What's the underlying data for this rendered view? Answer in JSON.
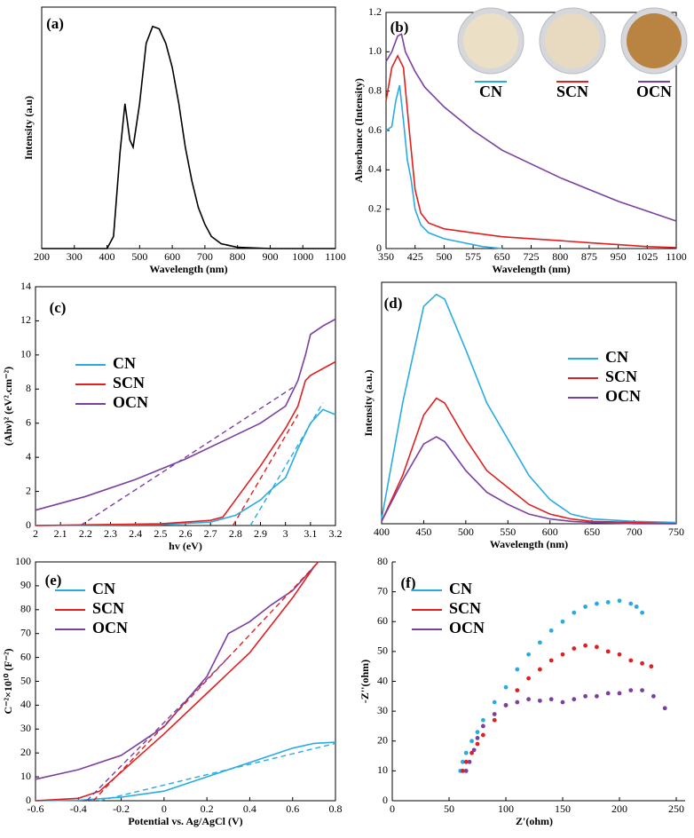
{
  "chart_data": [
    {
      "type": "line",
      "panel": "(a)",
      "x_label": "Wavelength (nm)",
      "y_label": "Intensity (a.u)",
      "xlim": [
        200,
        1100
      ],
      "ylim": [
        0,
        1
      ],
      "xticks": [
        200,
        300,
        400,
        500,
        600,
        700,
        800,
        900,
        1000,
        1100
      ],
      "grid": false,
      "color": "#000000",
      "x": [
        200,
        400,
        420,
        440,
        455,
        470,
        480,
        500,
        520,
        540,
        560,
        580,
        600,
        620,
        640,
        660,
        680,
        700,
        720,
        750,
        800,
        900,
        1100
      ],
      "values": [
        0,
        0,
        0.05,
        0.4,
        0.6,
        0.45,
        0.42,
        0.6,
        0.85,
        0.92,
        0.91,
        0.85,
        0.75,
        0.6,
        0.42,
        0.28,
        0.17,
        0.1,
        0.05,
        0.02,
        0.005,
        0,
        0
      ]
    },
    {
      "type": "line",
      "panel": "(b)",
      "x_label": "Wavelength (nm)",
      "y_label": "Absorbance (Intensity)",
      "xlim": [
        350,
        1100
      ],
      "ylim": [
        0,
        1.2
      ],
      "xticks": [
        350,
        425,
        500,
        575,
        650,
        725,
        800,
        875,
        950,
        1025,
        1100
      ],
      "yticks": [
        0,
        0.2,
        0.4,
        0.6,
        0.8,
        {
          "value": 1,
          "label": "1.0"
        },
        1.2
      ],
      "grid": false,
      "legend": "photos",
      "series": [
        {
          "name": "CN",
          "color": "#29abe2",
          "x": [
            350,
            365,
            375,
            385,
            395,
            405,
            415,
            425,
            440,
            460,
            500,
            550,
            600,
            650
          ],
          "values": [
            0.6,
            0.62,
            0.75,
            0.83,
            0.65,
            0.45,
            0.35,
            0.2,
            0.12,
            0.08,
            0.05,
            0.03,
            0.01,
            0
          ]
        },
        {
          "name": "SCN",
          "color": "#e02020",
          "x": [
            350,
            365,
            380,
            395,
            410,
            425,
            440,
            460,
            500,
            575,
            650,
            725,
            800,
            875,
            950,
            1025,
            1100
          ],
          "values": [
            0.75,
            0.92,
            0.98,
            0.92,
            0.6,
            0.3,
            0.18,
            0.13,
            0.1,
            0.08,
            0.06,
            0.05,
            0.04,
            0.03,
            0.02,
            0.01,
            0.005
          ]
        },
        {
          "name": "OCN",
          "color": "#7b3fa0",
          "x": [
            350,
            365,
            380,
            390,
            400,
            425,
            450,
            500,
            575,
            650,
            725,
            800,
            875,
            950,
            1025,
            1100
          ],
          "values": [
            0.95,
            1.0,
            1.08,
            1.09,
            1.0,
            0.9,
            0.82,
            0.72,
            0.6,
            0.5,
            0.43,
            0.36,
            0.3,
            0.24,
            0.19,
            0.14
          ]
        }
      ]
    },
    {
      "type": "line",
      "panel": "(c)",
      "x_label": "hv (eV)",
      "y_label": "(Ahν)² (eV².cm⁻²)",
      "xlim": [
        2,
        3.2
      ],
      "ylim": [
        0,
        14
      ],
      "xticks": [
        2,
        2.1,
        2.2,
        2.3,
        2.4,
        2.5,
        2.6,
        2.7,
        2.8,
        2.9,
        3,
        3.1,
        3.2
      ],
      "yticks": [
        0,
        2,
        4,
        6,
        8,
        10,
        12,
        14
      ],
      "grid": false,
      "legend": "center-left",
      "series": [
        {
          "name": "CN",
          "color": "#29abe2",
          "x": [
            2,
            2.5,
            2.7,
            2.8,
            2.9,
            2.95,
            3.0,
            3.05,
            3.1,
            3.15,
            3.2
          ],
          "values": [
            0,
            0.05,
            0.2,
            0.6,
            1.5,
            2.2,
            2.8,
            4.5,
            6.0,
            6.8,
            6.5
          ]
        },
        {
          "name": "SCN",
          "color": "#e02020",
          "x": [
            2,
            2.5,
            2.7,
            2.75,
            2.8,
            2.9,
            3.0,
            3.05,
            3.08,
            3.1,
            3.2
          ],
          "values": [
            0,
            0.1,
            0.3,
            0.5,
            1.5,
            3.5,
            5.7,
            7,
            8.5,
            8.8,
            9.6
          ]
        },
        {
          "name": "OCN",
          "color": "#7b3fa0",
          "x": [
            2,
            2.2,
            2.4,
            2.6,
            2.8,
            2.9,
            3.0,
            3.05,
            3.08,
            3.1,
            3.15,
            3.2
          ],
          "values": [
            0.9,
            1.7,
            2.7,
            3.9,
            5.3,
            6.0,
            7.0,
            8.5,
            10,
            11.2,
            11.7,
            12.1
          ]
        }
      ],
      "fit_lines": [
        {
          "color": "#29abe2",
          "x": [
            2.86,
            3.15
          ],
          "values": [
            0,
            7.2
          ]
        },
        {
          "color": "#e02020",
          "x": [
            2.79,
            3.05
          ],
          "values": [
            0,
            6.5
          ]
        },
        {
          "color": "#7b3fa0",
          "x": [
            2.18,
            3.03
          ],
          "values": [
            0,
            8.1
          ]
        }
      ]
    },
    {
      "type": "line",
      "panel": "(d)",
      "x_label": "Wavelength (nm)",
      "y_label": "Intensity (a.u.)",
      "xlim": [
        400,
        750
      ],
      "ylim": [
        0,
        1
      ],
      "xticks": [
        400,
        450,
        500,
        550,
        600,
        650,
        700,
        750
      ],
      "grid": false,
      "legend": "center-right",
      "series": [
        {
          "name": "CN",
          "color": "#29abe2",
          "x": [
            400,
            425,
            450,
            465,
            475,
            500,
            525,
            550,
            575,
            600,
            625,
            650,
            700,
            750
          ],
          "values": [
            0.02,
            0.5,
            0.9,
            0.95,
            0.93,
            0.72,
            0.5,
            0.35,
            0.2,
            0.1,
            0.04,
            0.02,
            0.01,
            0.005
          ]
        },
        {
          "name": "SCN",
          "color": "#e02020",
          "x": [
            400,
            425,
            450,
            465,
            475,
            500,
            525,
            550,
            575,
            600,
            625,
            650,
            700,
            750
          ],
          "values": [
            0.01,
            0.2,
            0.45,
            0.52,
            0.5,
            0.35,
            0.22,
            0.15,
            0.08,
            0.04,
            0.02,
            0.01,
            0.005,
            0
          ]
        },
        {
          "name": "OCN",
          "color": "#7b3fa0",
          "x": [
            400,
            425,
            450,
            465,
            475,
            500,
            525,
            550,
            575,
            600,
            625,
            650,
            700,
            750
          ],
          "values": [
            0.01,
            0.18,
            0.33,
            0.36,
            0.34,
            0.22,
            0.13,
            0.08,
            0.04,
            0.02,
            0.01,
            0.005,
            0,
            0
          ]
        }
      ]
    },
    {
      "type": "line",
      "panel": "(e)",
      "x_label": "Potential vs. Ag/AgCl (V)",
      "y_label": "C⁻²×10¹⁰ (F⁻²)",
      "xlim": [
        -0.6,
        0.8
      ],
      "ylim": [
        0,
        100
      ],
      "xticks": [
        -0.6,
        -0.4,
        -0.2,
        0,
        0.2,
        0.4,
        0.6,
        0.8
      ],
      "yticks": [
        0,
        10,
        20,
        30,
        40,
        50,
        60,
        70,
        80,
        90,
        100
      ],
      "grid": false,
      "legend": "upper-left",
      "series": [
        {
          "name": "CN",
          "color": "#29abe2",
          "x": [
            -0.6,
            -0.4,
            -0.2,
            0,
            0.2,
            0.4,
            0.6,
            0.7,
            0.8
          ],
          "values": [
            0,
            0.2,
            1.5,
            4,
            10,
            16,
            22,
            24,
            24.5
          ]
        },
        {
          "name": "SCN",
          "color": "#e02020",
          "x": [
            -0.6,
            -0.4,
            -0.3,
            -0.2,
            0,
            0.2,
            0.4,
            0.6,
            0.7,
            0.72
          ],
          "values": [
            0,
            1,
            4,
            12,
            28,
            45,
            62,
            85,
            98,
            100
          ]
        },
        {
          "name": "OCN",
          "color": "#7b3fa0",
          "x": [
            -0.6,
            -0.4,
            -0.2,
            0,
            0.2,
            0.3,
            0.4,
            0.5,
            0.6,
            0.7
          ],
          "values": [
            9,
            13,
            19,
            31,
            52,
            70,
            75,
            82,
            88,
            98
          ]
        }
      ],
      "fit_lines": [
        {
          "color": "#29abe2",
          "x": [
            -0.3,
            0.8
          ],
          "values": [
            0,
            24
          ]
        },
        {
          "color": "#e02020",
          "x": [
            -0.33,
            0.72
          ],
          "values": [
            0,
            100
          ]
        },
        {
          "color": "#7b3fa0",
          "x": [
            -0.36,
            0.3
          ],
          "values": [
            0,
            60
          ]
        }
      ]
    },
    {
      "type": "scatter",
      "panel": "(f)",
      "x_label": "Z'(ohm)",
      "y_label": "-Z''(ohm)",
      "xlim": [
        0,
        250
      ],
      "ylim": [
        0,
        80
      ],
      "xticks": [
        0,
        50,
        100,
        150,
        200,
        250
      ],
      "yticks": [
        0,
        10,
        20,
        30,
        40,
        50,
        60,
        70,
        80
      ],
      "grid": false,
      "legend": "upper-left",
      "series": [
        {
          "name": "CN",
          "color": "#29abe2",
          "x": [
            60,
            62,
            65,
            70,
            75,
            80,
            90,
            100,
            110,
            120,
            130,
            140,
            150,
            160,
            170,
            180,
            190,
            200,
            210,
            215,
            220
          ],
          "values": [
            10,
            13,
            16,
            20,
            23,
            27,
            33,
            38,
            44,
            49,
            53,
            57,
            60,
            63,
            65,
            66,
            66.5,
            67,
            66,
            65,
            63
          ]
        },
        {
          "name": "SCN",
          "color": "#e02020",
          "x": [
            62,
            65,
            70,
            75,
            80,
            90,
            100,
            110,
            120,
            130,
            140,
            150,
            160,
            170,
            180,
            190,
            200,
            210,
            220,
            228
          ],
          "values": [
            10,
            13,
            16,
            19,
            22,
            27,
            32,
            37,
            41,
            44,
            47,
            49,
            51,
            52,
            51.5,
            50,
            49,
            47,
            46,
            45
          ]
        },
        {
          "name": "OCN",
          "color": "#7b3fa0",
          "x": [
            65,
            68,
            72,
            75,
            80,
            90,
            100,
            110,
            120,
            130,
            140,
            150,
            160,
            170,
            180,
            190,
            200,
            210,
            220,
            230,
            240
          ],
          "values": [
            10,
            13,
            17,
            21,
            25,
            29,
            32,
            33,
            34,
            33.5,
            34,
            33,
            34,
            35,
            35,
            36,
            36,
            37,
            37,
            35,
            31
          ]
        }
      ]
    }
  ]
}
